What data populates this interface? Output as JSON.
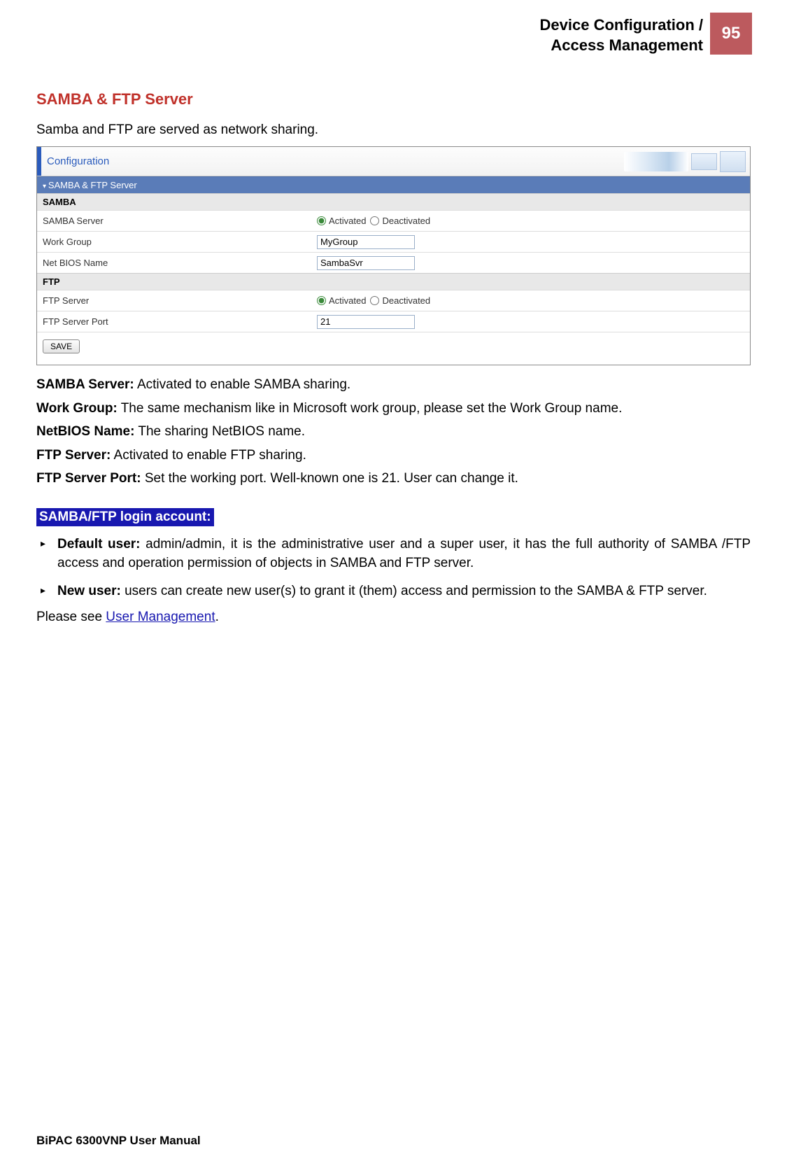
{
  "header": {
    "title_line1": "Device Configuration /",
    "title_line2": "Access Management",
    "page_number": "95",
    "page_num_bg": "#bc5a5e"
  },
  "section": {
    "title": "SAMBA & FTP Server",
    "title_color": "#c0312a",
    "intro": "Samba and FTP are served as network sharing."
  },
  "screenshot": {
    "config_label": "Configuration",
    "band_label": "SAMBA & FTP Server",
    "samba": {
      "header": "SAMBA",
      "rows": [
        {
          "label": "SAMBA Server",
          "type": "radio",
          "options": [
            "Activated",
            "Deactivated"
          ],
          "selected": 0
        },
        {
          "label": "Work Group",
          "type": "text",
          "value": "MyGroup"
        },
        {
          "label": "Net BIOS Name",
          "type": "text",
          "value": "SambaSvr"
        }
      ]
    },
    "ftp": {
      "header": "FTP",
      "rows": [
        {
          "label": "FTP Server",
          "type": "radio",
          "options": [
            "Activated",
            "Deactivated"
          ],
          "selected": 0
        },
        {
          "label": "FTP Server Port",
          "type": "text",
          "value": "21"
        }
      ]
    },
    "save_label": "SAVE"
  },
  "descriptions": [
    {
      "term": "SAMBA Server:",
      "text": " Activated to enable SAMBA sharing."
    },
    {
      "term": "Work Group:",
      "text": " The same mechanism like in Microsoft work group, please set the Work Group name."
    },
    {
      "term": "NetBIOS Name:",
      "text": " The sharing NetBIOS name."
    },
    {
      "term": "FTP Server:",
      "text": " Activated to enable FTP sharing."
    },
    {
      "term": "FTP Server Port:",
      "text": " Set the working port. Well-known one is 21. User can change it."
    }
  ],
  "login_section": {
    "banner": "SAMBA/FTP login account:",
    "banner_bg": "#1818b0",
    "bullets": [
      {
        "term": "Default user:",
        "text": " admin/admin, it is the administrative user and a super user, it has the full authority of SAMBA /FTP access and operation permission of objects in SAMBA and FTP server."
      },
      {
        "term": "New user:",
        "text": " users can create new user(s) to grant it (them) access and permission to the SAMBA & FTP server."
      }
    ],
    "see_prefix": "Please see ",
    "see_link": "User Management",
    "see_suffix": "."
  },
  "footer": "BiPAC 6300VNP User Manual"
}
